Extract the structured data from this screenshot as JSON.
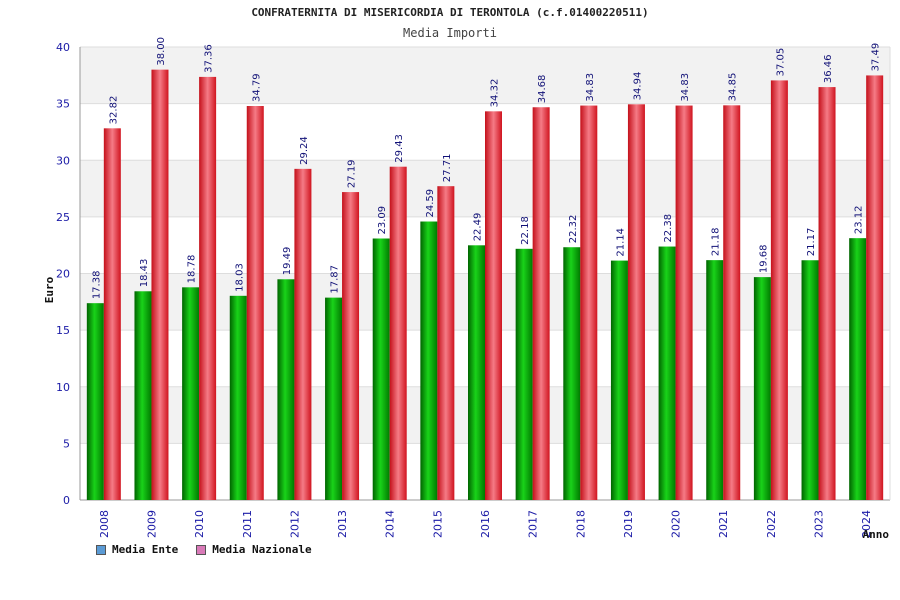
{
  "chart_data": {
    "type": "bar",
    "title": "CONFRATERNITA DI MISERICORDIA DI TERONTOLA (c.f.01400220511)",
    "subtitle": "Media Importi",
    "xlabel": "Anno",
    "ylabel": "Euro",
    "ylim": [
      0,
      40
    ],
    "yticks": [
      0,
      5,
      10,
      15,
      20,
      25,
      30,
      35,
      40
    ],
    "categories": [
      "2008",
      "2009",
      "2010",
      "2011",
      "2012",
      "2013",
      "2014",
      "2015",
      "2016",
      "2017",
      "2018",
      "2019",
      "2020",
      "2021",
      "2022",
      "2023",
      "2024"
    ],
    "series": [
      {
        "name": "Media Ente",
        "color": "#00a000",
        "legend_color": "#5b9bd5",
        "values": [
          17.38,
          18.43,
          18.78,
          18.03,
          19.49,
          17.87,
          23.09,
          24.59,
          22.49,
          22.18,
          22.32,
          21.14,
          22.38,
          21.18,
          19.68,
          21.17,
          23.12
        ]
      },
      {
        "name": "Media Nazionale",
        "color": "#e8202a",
        "legend_color": "#d97ab8",
        "values": [
          32.82,
          38.0,
          37.36,
          34.79,
          29.24,
          27.19,
          29.43,
          27.71,
          34.32,
          34.68,
          34.83,
          34.94,
          34.83,
          34.85,
          37.05,
          36.46,
          37.49
        ]
      }
    ],
    "legend_position": "bottom-left"
  }
}
